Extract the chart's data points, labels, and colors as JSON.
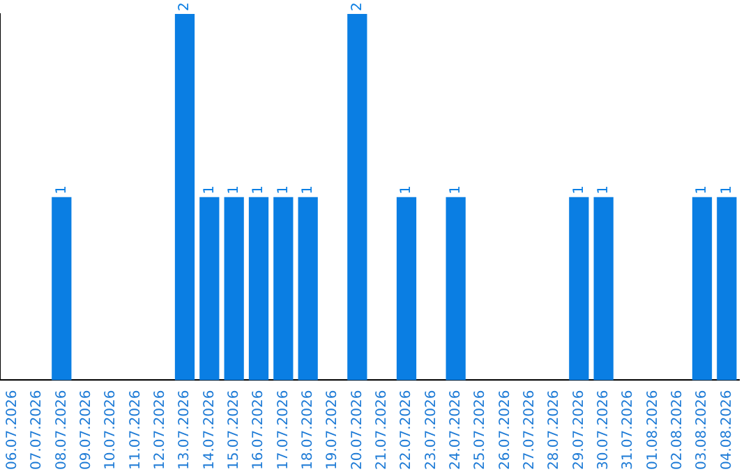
{
  "chart_data": {
    "type": "bar",
    "categories": [
      "06.07.2026",
      "07.07.2026",
      "08.07.2026",
      "09.07.2026",
      "10.07.2026",
      "11.07.2026",
      "12.07.2026",
      "13.07.2026",
      "14.07.2026",
      "15.07.2026",
      "16.07.2026",
      "17.07.2026",
      "18.07.2026",
      "19.07.2026",
      "20.07.2026",
      "21.07.2026",
      "22.07.2026",
      "23.07.2026",
      "24.07.2026",
      "25.07.2026",
      "26.07.2026",
      "27.07.2026",
      "28.07.2026",
      "29.07.2026",
      "30.07.2026",
      "31.07.2026",
      "01.08.2026",
      "02.08.2026",
      "03.08.2026",
      "04.08.2026"
    ],
    "values": [
      0,
      0,
      1,
      0,
      0,
      0,
      0,
      2,
      1,
      1,
      1,
      1,
      1,
      0,
      2,
      0,
      1,
      0,
      1,
      0,
      0,
      0,
      0,
      1,
      1,
      0,
      0,
      0,
      1,
      1
    ],
    "value_labels": [
      null,
      null,
      "1",
      null,
      null,
      null,
      null,
      "2",
      "1",
      "1",
      "1",
      "1",
      "1",
      null,
      "2",
      null,
      "1",
      null,
      "1",
      null,
      null,
      null,
      null,
      "1",
      "1",
      null,
      null,
      null,
      "1",
      "1"
    ],
    "color": "#0a7ee3",
    "ylim": [
      0,
      2
    ],
    "tick_labels": "x",
    "grid": false,
    "legend": false
  }
}
